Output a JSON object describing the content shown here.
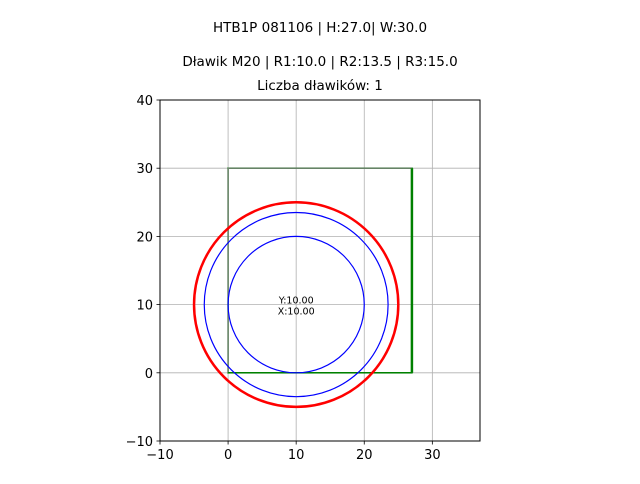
{
  "chart_data": {
    "type": "line",
    "title_lines": [
      "HTB1P 081106 | H:27.0| W:30.0",
      "Dławik M20 | R1:10.0 | R2:13.5 | R3:15.0",
      "Liczba dławików: 1"
    ],
    "xlabel": "",
    "ylabel": "",
    "xlim": [
      -10,
      37
    ],
    "ylim": [
      -10,
      40
    ],
    "xticks": [
      -10,
      0,
      10,
      20,
      30
    ],
    "yticks": [
      -10,
      0,
      10,
      20,
      30,
      40
    ],
    "grid": true,
    "rectangle": {
      "x0": 0,
      "y0": 0,
      "x1": 27,
      "y1": 30,
      "edge_color": "#808080",
      "highlight_color": "#008000"
    },
    "circles": [
      {
        "cx": 10,
        "cy": 10,
        "r": 15.0,
        "color": "#ff0000"
      },
      {
        "cx": 10,
        "cy": 10,
        "r": 13.5,
        "color": "#0000ff"
      },
      {
        "cx": 10,
        "cy": 10,
        "r": 10.0,
        "color": "#0000ff"
      }
    ],
    "annotation": {
      "x": 10,
      "y": 10,
      "lines": [
        "Y:10.00",
        "X:10.00"
      ]
    }
  }
}
